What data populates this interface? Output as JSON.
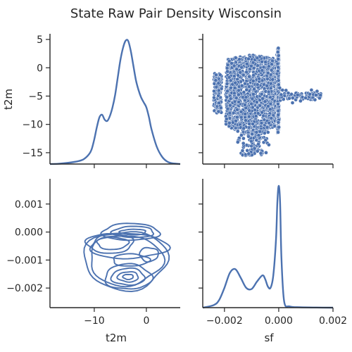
{
  "colors": {
    "series": "#4c72b0",
    "axis": "#262626",
    "background": "#ffffff"
  },
  "chart_data": {
    "type": "pairplot",
    "title": "State Raw Pair Density Wisconsin",
    "variables": [
      "t2m",
      "sf"
    ],
    "axes": {
      "t2m": {
        "label": "t2m",
        "range": [
          -18.5,
          6.5
        ],
        "ticks": [
          -10,
          0
        ],
        "tick_labels": [
          "−10",
          "0"
        ]
      },
      "t2m_row": {
        "label": "t2m",
        "range": [
          -17,
          6
        ],
        "ticks": [
          5,
          0,
          -5,
          -10,
          -15
        ],
        "tick_labels": [
          "5",
          "0",
          "−5",
          "−10",
          "−15"
        ]
      },
      "sf": {
        "label": "sf",
        "range": [
          -0.0028,
          0.002
        ],
        "ticks": [
          -0.002,
          0.0,
          0.002
        ],
        "tick_labels": [
          "−0.002",
          "0.000",
          "0.002"
        ]
      },
      "sf_row": {
        "label": "",
        "range": [
          -0.0027,
          0.0019
        ],
        "ticks": [
          0.001,
          0.0,
          -0.001,
          -0.002
        ],
        "tick_labels": [
          "0.001",
          "0.000",
          "−0.001",
          "−0.002"
        ]
      }
    },
    "panels": [
      {
        "position": "top-left",
        "type": "kde",
        "x": [
          -18.5,
          -17,
          -15,
          -13,
          -12,
          -11,
          -10.5,
          -10,
          -9.5,
          -9,
          -8.5,
          -8,
          -7.5,
          -7,
          -6.5,
          -6,
          -5.5,
          -5,
          -4.5,
          -4,
          -3.5,
          -3,
          -2.5,
          -2,
          -1.5,
          -1,
          -0.5,
          0,
          0.5,
          1,
          2,
          3,
          4,
          5,
          6.5
        ],
        "y": [
          0.0,
          0.001,
          0.005,
          0.012,
          0.02,
          0.04,
          0.06,
          0.1,
          0.15,
          0.19,
          0.2,
          0.18,
          0.175,
          0.195,
          0.23,
          0.28,
          0.35,
          0.42,
          0.47,
          0.5,
          0.5,
          0.46,
          0.4,
          0.34,
          0.3,
          0.27,
          0.25,
          0.23,
          0.19,
          0.14,
          0.07,
          0.03,
          0.01,
          0.003,
          0.0
        ]
      },
      {
        "position": "top-right",
        "type": "scatter",
        "note_values": "sf (x) versus t2m (y); points form a dense cloud for sf in [-0.0020, 0.0000] and t2m in [-13, 2.5], a vertical column at sf = 0 spanning t2m [-12, 3.5] and a sparse tail to sf = 0.0015 near t2m = -5",
        "x_range": [
          -0.0028,
          0.002
        ],
        "y_range": [
          -17,
          6
        ]
      },
      {
        "position": "bottom-left",
        "type": "kde2d",
        "contours": [
          {
            "cx": -4,
            "cy": -0.001,
            "rx": 8,
            "ry": 0.00105
          },
          {
            "cx": -4,
            "cy": -0.001,
            "rx": 7,
            "ry": 0.0009
          },
          {
            "cx": -3.5,
            "cy": -0.0005,
            "rx": 7.5,
            "ry": 0.00045
          },
          {
            "cx": -3,
            "cy": 0.0,
            "rx": 5.5,
            "ry": 0.0003
          },
          {
            "cx": -2.5,
            "cy": 0.0,
            "rx": 4,
            "ry": 0.0002
          },
          {
            "cx": -2.5,
            "cy": 0.0,
            "rx": 2.5,
            "ry": 0.0001
          },
          {
            "cx": -7,
            "cy": -0.0004,
            "rx": 4.5,
            "ry": 0.00035
          },
          {
            "cx": -6.5,
            "cy": -0.0004,
            "rx": 3,
            "ry": 0.00022
          },
          {
            "cx": -3,
            "cy": -0.001,
            "rx": 3.5,
            "ry": 0.00022
          },
          {
            "cx": -3.5,
            "cy": -0.0016,
            "rx": 4.5,
            "ry": 0.00045
          },
          {
            "cx": -3.5,
            "cy": -0.0016,
            "rx": 3.2,
            "ry": 0.0003
          },
          {
            "cx": -3.5,
            "cy": -0.0016,
            "rx": 2.0,
            "ry": 0.00018
          },
          {
            "cx": -3.5,
            "cy": -0.0016,
            "rx": 1.0,
            "ry": 9e-05
          },
          {
            "cx": 0.5,
            "cy": -0.0008,
            "rx": 1.8,
            "ry": 0.00025
          }
        ]
      },
      {
        "position": "bottom-right",
        "type": "kde",
        "x": [
          -0.0028,
          -0.0024,
          -0.0022,
          -0.002,
          -0.0018,
          -0.0016,
          -0.0014,
          -0.0012,
          -0.001,
          -0.0008,
          -0.0006,
          -0.0005,
          -0.0004,
          -0.0003,
          -0.0002,
          -0.0001,
          -5e-05,
          0.0,
          5e-05,
          0.0001,
          0.0002,
          0.0004,
          0.0008,
          0.0014,
          0.002
        ],
        "y": [
          0.0,
          0.02,
          0.06,
          0.16,
          0.28,
          0.31,
          0.24,
          0.16,
          0.15,
          0.21,
          0.26,
          0.23,
          0.17,
          0.16,
          0.26,
          0.55,
          0.85,
          0.98,
          0.85,
          0.4,
          0.05,
          0.01,
          0.003,
          0.001,
          0.0
        ]
      }
    ]
  }
}
